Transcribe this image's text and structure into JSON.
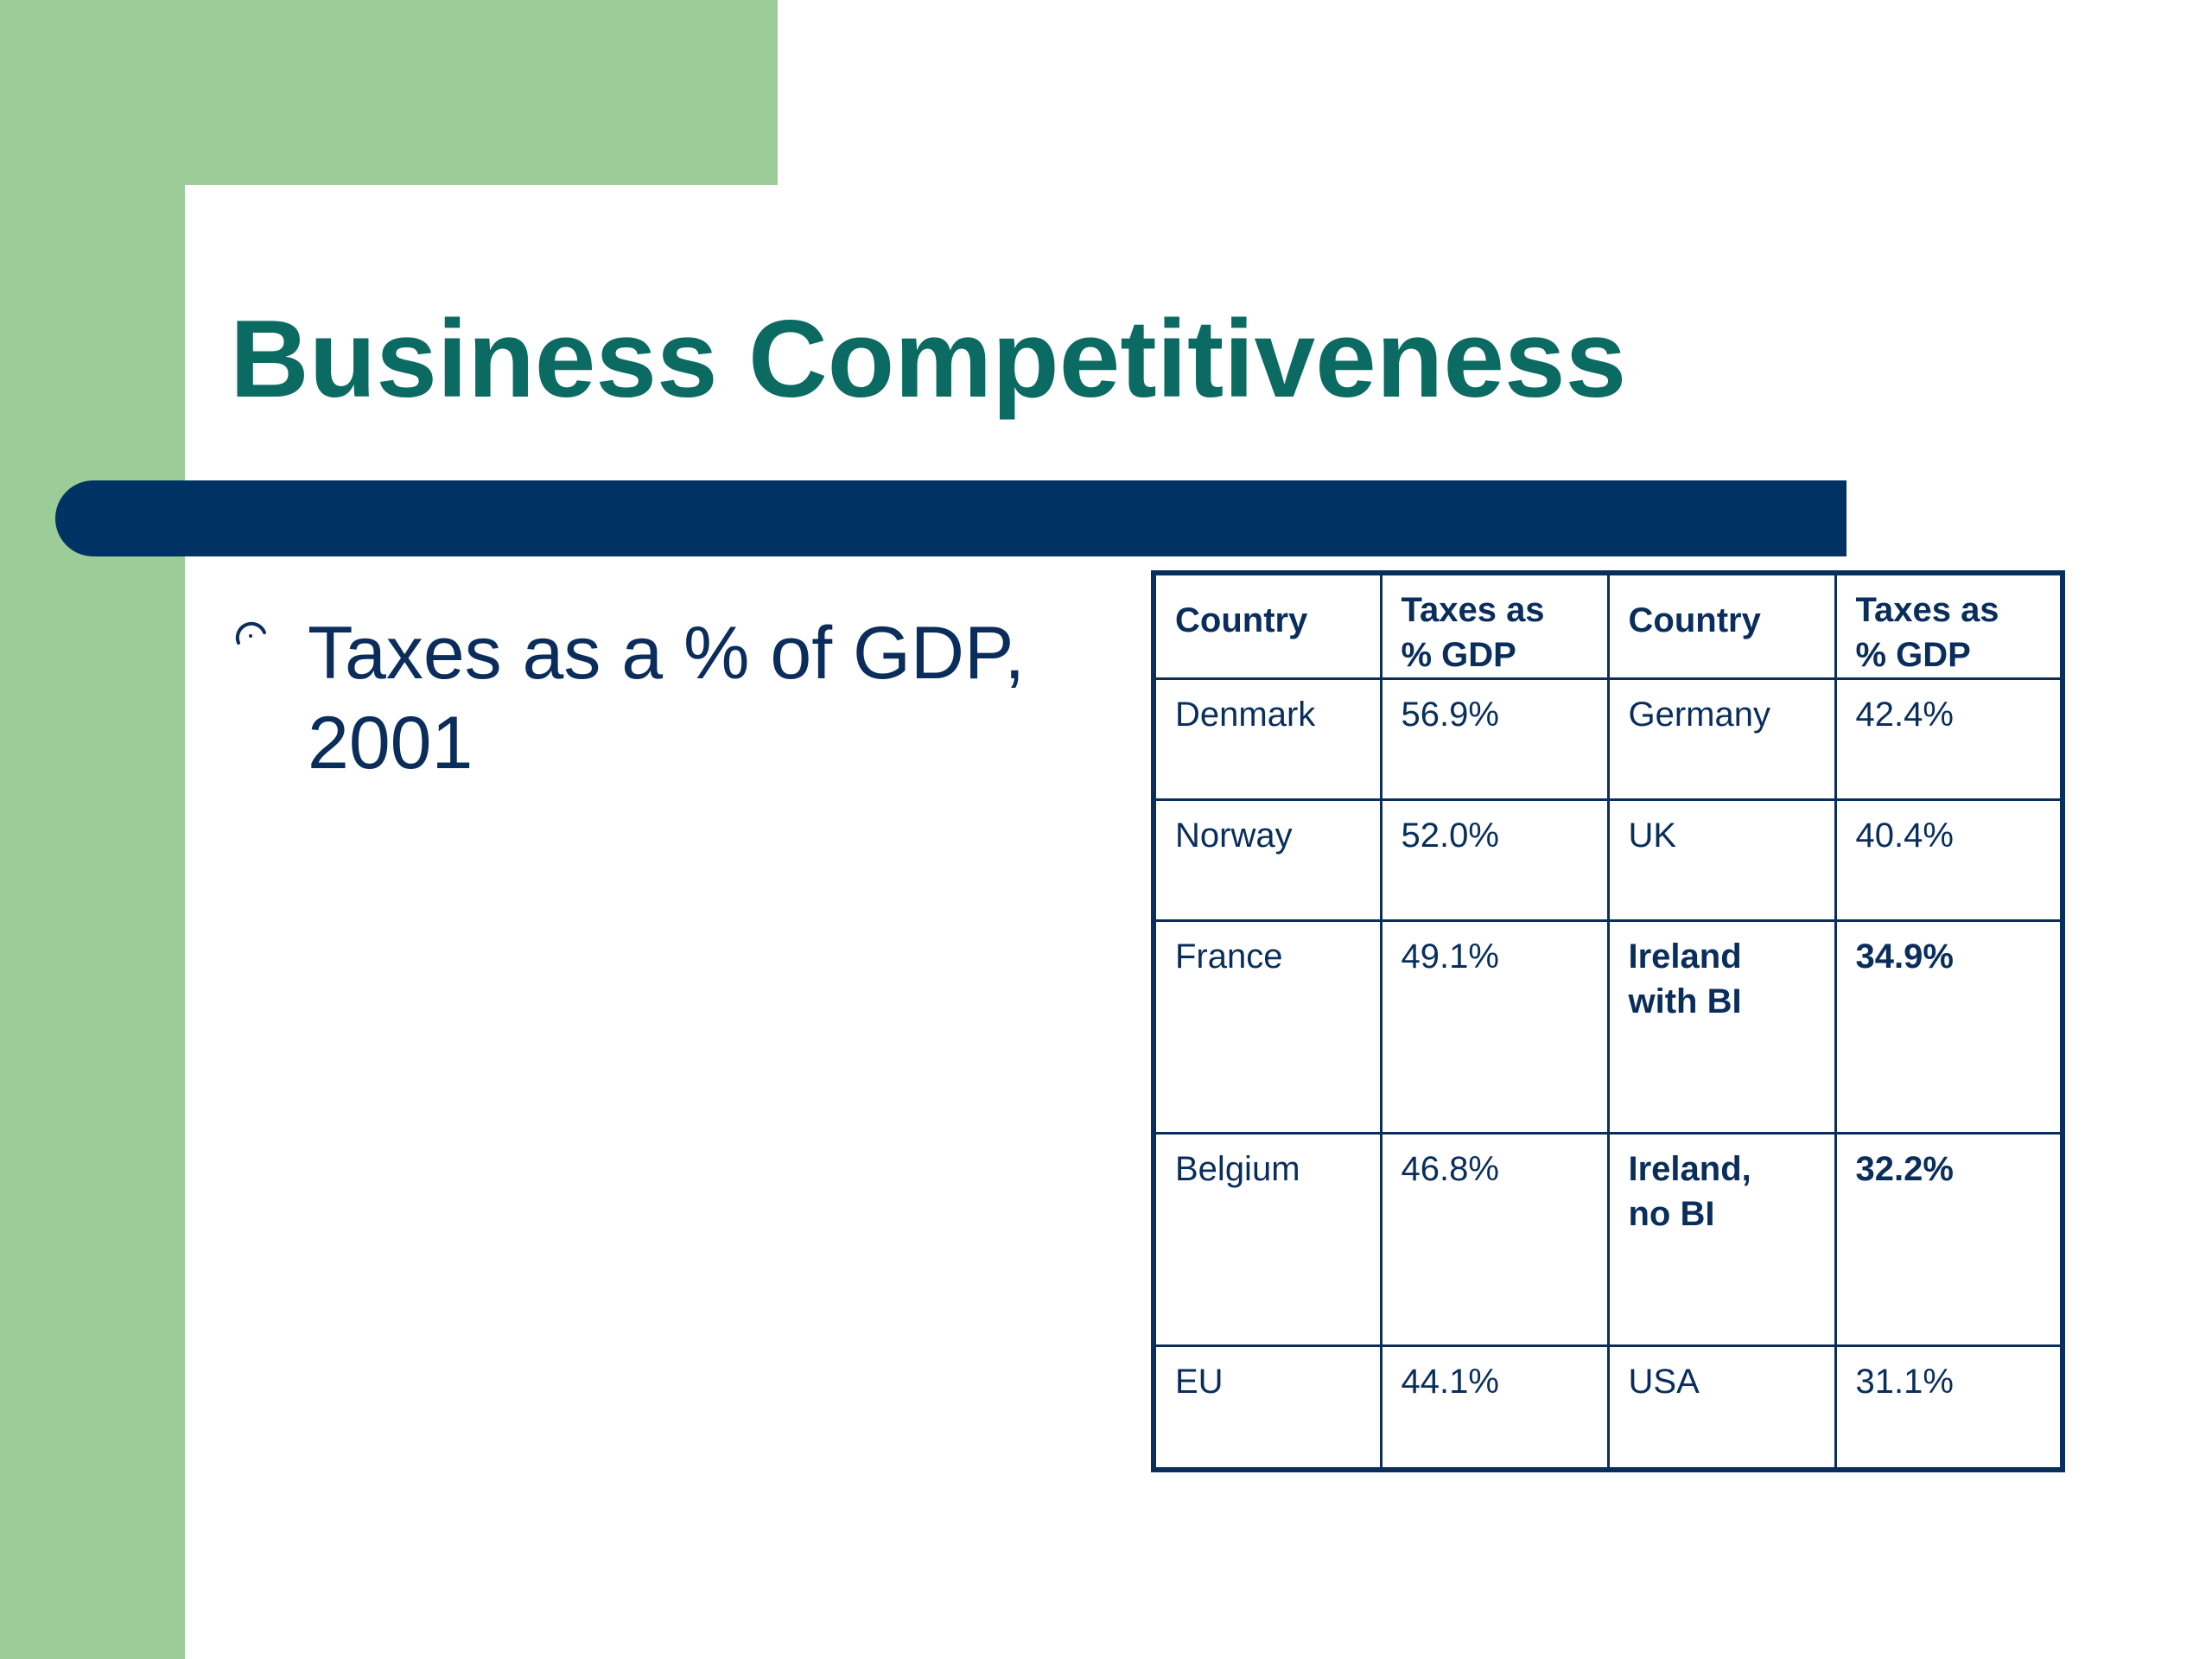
{
  "slide": {
    "title": "Business Competitiveness",
    "bullet": {
      "icon": "ring-bullet-icon",
      "text": "Taxes as a % of GDP, 2001"
    }
  },
  "colors": {
    "title": "#0b6b63",
    "rule": "#003363",
    "green_background": "#9ccd98",
    "text": "#0b2d5c"
  },
  "table": {
    "headers": [
      {
        "lines": [
          "Country"
        ]
      },
      {
        "lines": [
          "Taxes as",
          "% GDP"
        ]
      },
      {
        "lines": [
          "Country"
        ]
      },
      {
        "lines": [
          "Taxes as",
          "% GDP"
        ]
      }
    ],
    "rows": [
      {
        "country_a": [
          "Denmark"
        ],
        "value_a": "56.9%",
        "country_b": [
          "Germany"
        ],
        "value_b": "42.4%",
        "highlight_b": false
      },
      {
        "country_a": [
          "Norway"
        ],
        "value_a": "52.0%",
        "country_b": [
          "UK"
        ],
        "value_b": "40.4%",
        "highlight_b": false
      },
      {
        "country_a": [
          "France"
        ],
        "value_a": "49.1%",
        "country_b": [
          "Ireland",
          "with BI"
        ],
        "value_b": "34.9%",
        "highlight_b": true
      },
      {
        "country_a": [
          "Belgium"
        ],
        "value_a": "46.8%",
        "country_b": [
          "Ireland,",
          "no BI"
        ],
        "value_b": "32.2%",
        "highlight_b": true
      },
      {
        "country_a": [
          "EU"
        ],
        "value_a": "44.1%",
        "country_b": [
          "USA"
        ],
        "value_b": "31.1%",
        "highlight_b": false
      }
    ]
  }
}
